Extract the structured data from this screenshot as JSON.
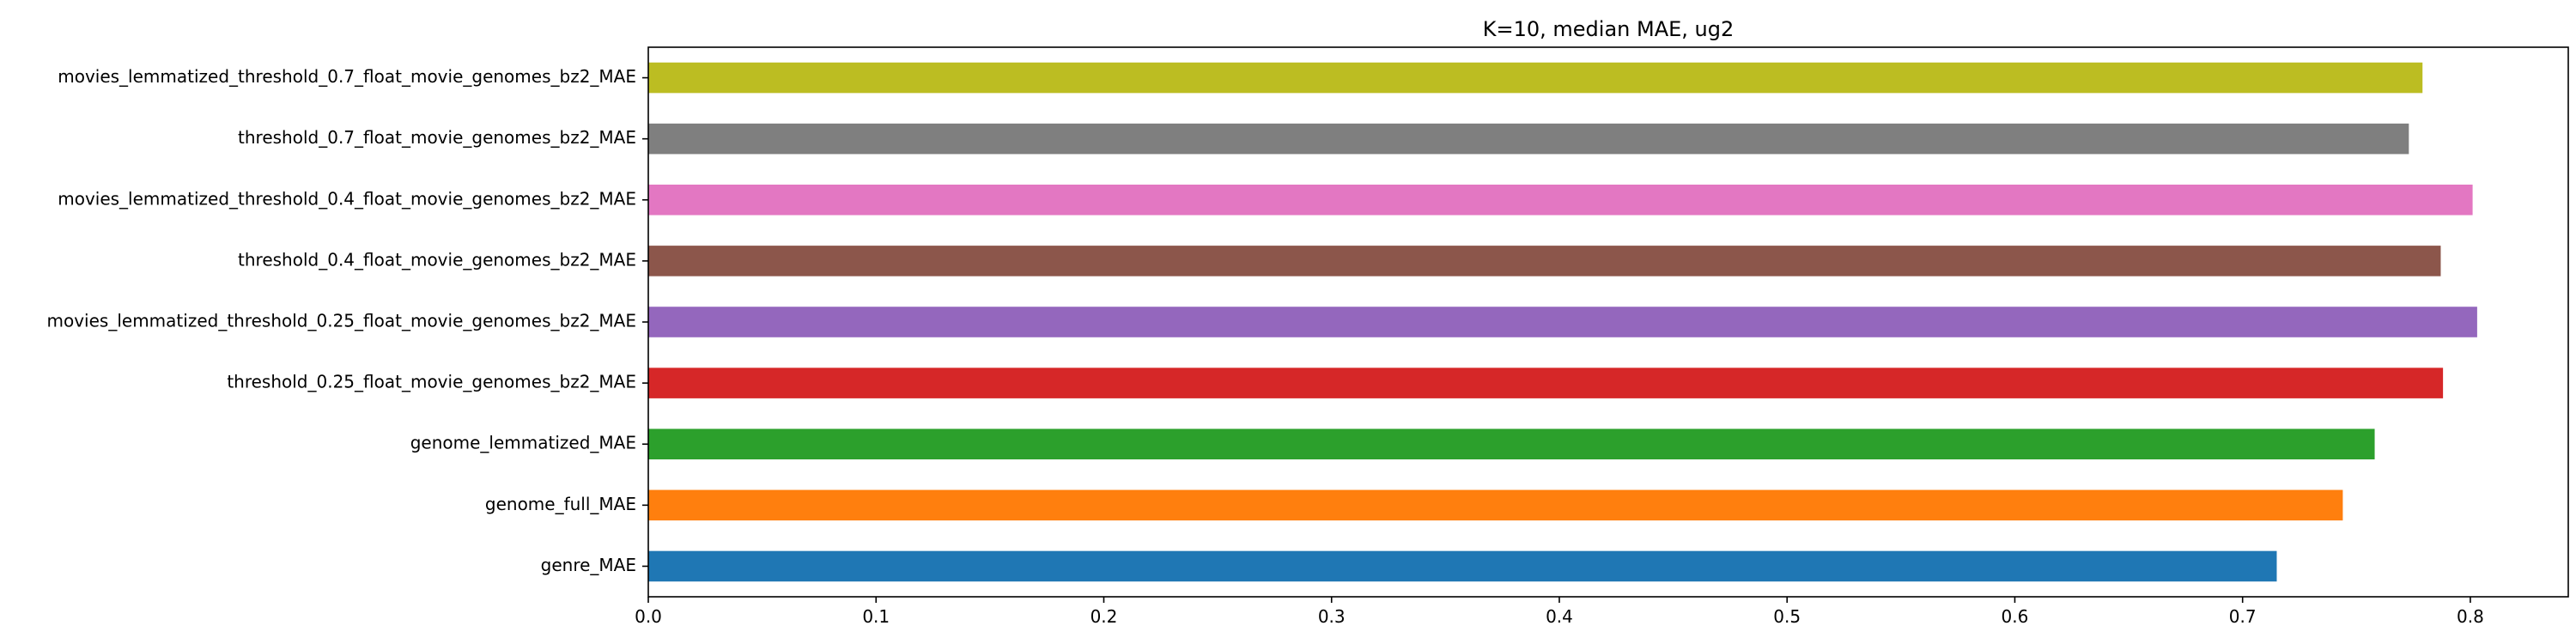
{
  "chart_data": {
    "type": "bar",
    "orientation": "horizontal",
    "title": "K=10, median MAE, ug2",
    "xlabel": "",
    "ylabel": "",
    "xlim": [
      0,
      0.843
    ],
    "xticks": [
      0.0,
      0.1,
      0.2,
      0.3,
      0.4,
      0.5,
      0.6,
      0.7,
      0.8
    ],
    "xtick_labels": [
      "0.0",
      "0.1",
      "0.2",
      "0.3",
      "0.4",
      "0.5",
      "0.6",
      "0.7",
      "0.8"
    ],
    "grid": false,
    "legend": "none",
    "categories": [
      "genre_MAE",
      "genome_full_MAE",
      "genome_lemmatized_MAE",
      "threshold_0.25_float_movie_genomes_bz2_MAE",
      "movies_lemmatized_threshold_0.25_float_movie_genomes_bz2_MAE",
      "threshold_0.4_float_movie_genomes_bz2_MAE",
      "movies_lemmatized_threshold_0.4_float_movie_genomes_bz2_MAE",
      "threshold_0.7_float_movie_genomes_bz2_MAE",
      "movies_lemmatized_threshold_0.7_float_movie_genomes_bz2_MAE"
    ],
    "values": [
      0.715,
      0.744,
      0.758,
      0.788,
      0.803,
      0.787,
      0.801,
      0.773,
      0.779
    ],
    "colors": [
      "#1f77b4",
      "#ff7f0e",
      "#2ca02c",
      "#d62728",
      "#9467bd",
      "#8c564b",
      "#e377c2",
      "#7f7f7f",
      "#bcbd22"
    ]
  }
}
